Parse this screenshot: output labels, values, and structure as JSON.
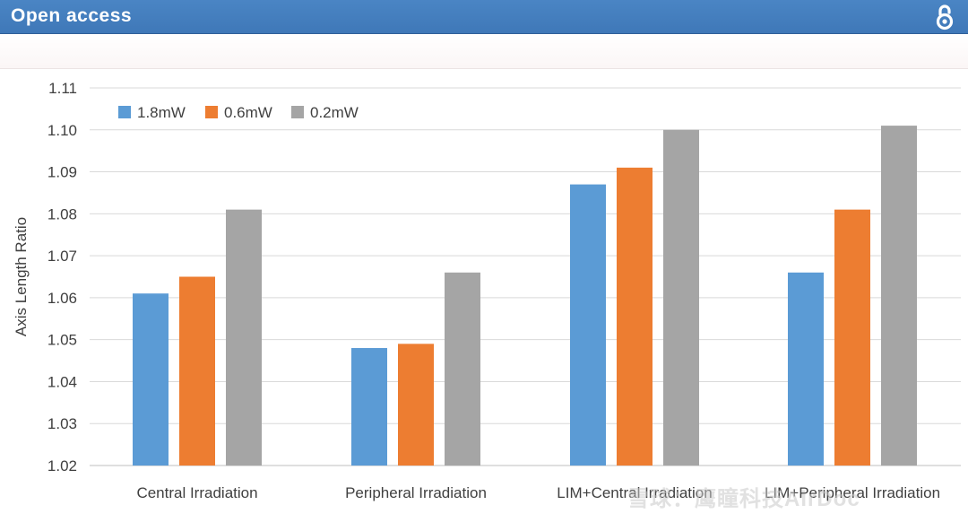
{
  "header": {
    "title": "Open access"
  },
  "colors": {
    "header_bg": "#3f78b8",
    "series_1": "#5b9bd5",
    "series_2": "#ed7d31",
    "series_3": "#a5a5a5"
  },
  "icons": {
    "open_access": "open-access-lock-icon"
  },
  "watermark": {
    "text": "雪球：鹰瞳科技AirDoc"
  },
  "chart_data": {
    "type": "bar",
    "categories": [
      "Central Irradiation",
      "Peripheral Irradiation",
      "LIM+Central Irradiation",
      "LIM+Peripheral Irradiation"
    ],
    "series": [
      {
        "name": "1.8mW",
        "values": [
          1.061,
          1.048,
          1.087,
          1.066
        ]
      },
      {
        "name": "0.6mW",
        "values": [
          1.065,
          1.049,
          1.091,
          1.081
        ]
      },
      {
        "name": "0.2mW",
        "values": [
          1.081,
          1.066,
          1.1,
          1.101
        ]
      }
    ],
    "title": "",
    "xlabel": "",
    "ylabel": "Axis Length Ratio",
    "ylim": [
      1.02,
      1.11
    ],
    "yticks": [
      "1.02",
      "1.03",
      "1.04",
      "1.05",
      "1.06",
      "1.07",
      "1.08",
      "1.09",
      "1.10",
      "1.11"
    ],
    "grid": true,
    "legend": "top-left"
  }
}
